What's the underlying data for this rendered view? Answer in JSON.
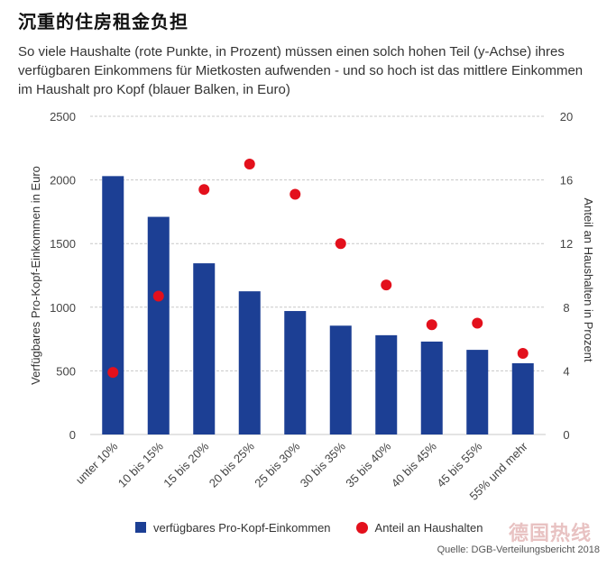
{
  "header": {
    "title": "沉重的住房租金负担",
    "subtitle": "So viele Haushalte (rote Punkte, in Prozent) müssen einen solch hohen Teil (y-Achse) ihres verfügbaren Einkommens für Mietkosten aufwenden - und so hoch ist das mittlere Einkommen im Haushalt pro Kopf (blauer Balken, in Euro)"
  },
  "legend": {
    "bars_label": "verfügbares Pro-Kopf-Einkommen",
    "dots_label": "Anteil an Haushalten"
  },
  "source": "Quelle: DGB-Verteilungsbericht 2018",
  "watermark": "德国热线",
  "colors": {
    "bar": "#1c3f94",
    "dot": "#e3101c",
    "grid": "#c8c8c8"
  },
  "chart_data": {
    "type": "bar",
    "categories": [
      "unter 10%",
      "10 bis 15%",
      "15 bis 20%",
      "20 bis 25%",
      "25 bis 30%",
      "30 bis 35%",
      "35 bis 40%",
      "40 bis 45%",
      "45 bis 55%",
      "55% und mehr"
    ],
    "series": [
      {
        "name": "verfügbares Pro-Kopf-Einkommen",
        "type": "bar",
        "axis": "left",
        "values": [
          2030,
          1710,
          1345,
          1125,
          970,
          855,
          780,
          730,
          665,
          560
        ]
      },
      {
        "name": "Anteil an Haushalten",
        "type": "scatter",
        "axis": "right",
        "values": [
          3.9,
          8.7,
          15.4,
          17.0,
          15.1,
          12.0,
          9.4,
          6.9,
          7.0,
          5.1
        ]
      }
    ],
    "ylabel": "Verfügbares Pro-Kopf-Einkommen in Euro",
    "y2label": "Anteil an Haushalten in Prozent",
    "ylim": [
      0,
      2500
    ],
    "yticks": [
      0,
      500,
      1000,
      1500,
      2000,
      2500
    ],
    "y2lim": [
      0,
      20
    ],
    "y2ticks": [
      0,
      4,
      8,
      12,
      16,
      20
    ],
    "grid": true,
    "legend_position": "bottom"
  }
}
